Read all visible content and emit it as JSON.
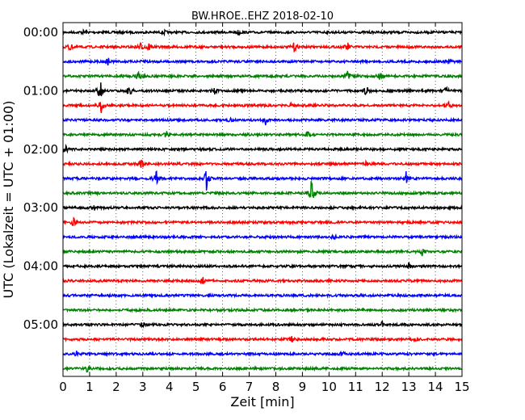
{
  "chart_data": {
    "type": "line",
    "title": "BW.HROE..EHZ 2018-02-10",
    "xlabel": "Zeit  [min]",
    "ylabel": "UTC (Lokalzeit = UTC + 01:00)",
    "xlim": [
      0,
      15
    ],
    "x_ticks": [
      "0",
      "1",
      "2",
      "3",
      "4",
      "5",
      "6",
      "7",
      "8",
      "9",
      "10",
      "11",
      "12",
      "13",
      "14",
      "15"
    ],
    "y_tick_labels": [
      "00:00",
      "01:00",
      "02:00",
      "03:00",
      "04:00",
      "05:00"
    ],
    "row_interval_minutes": 15,
    "row_start_times": [
      "00:00",
      "00:15",
      "00:30",
      "00:45",
      "01:00",
      "01:15",
      "01:30",
      "01:45",
      "02:00",
      "02:15",
      "02:30",
      "02:45",
      "03:00",
      "03:15",
      "03:30",
      "03:45",
      "04:00",
      "04:15",
      "04:30",
      "04:45",
      "05:00",
      "05:15",
      "05:30",
      "05:45"
    ],
    "colors": [
      "#000000",
      "#ff0000",
      "#0000ff",
      "#008000"
    ],
    "grid": "vertical dotted",
    "events": [
      {
        "row": 0,
        "minute": 0.8,
        "amp": 0.2
      },
      {
        "row": 0,
        "minute": 3.8,
        "amp": 0.15
      },
      {
        "row": 0,
        "minute": 6.6,
        "amp": 0.2
      },
      {
        "row": 1,
        "minute": 0.25,
        "amp": 0.4
      },
      {
        "row": 1,
        "minute": 2.9,
        "amp": 0.35
      },
      {
        "row": 1,
        "minute": 3.2,
        "amp": 0.5
      },
      {
        "row": 1,
        "minute": 8.7,
        "amp": 0.4
      },
      {
        "row": 1,
        "minute": 10.7,
        "amp": 0.35
      },
      {
        "row": 2,
        "minute": 1.7,
        "amp": 0.3
      },
      {
        "row": 2,
        "minute": 3.1,
        "amp": 0.2
      },
      {
        "row": 2,
        "minute": 14.5,
        "amp": 0.25
      },
      {
        "row": 3,
        "minute": 2.2,
        "amp": 0.2
      },
      {
        "row": 3,
        "minute": 2.85,
        "amp": 0.55
      },
      {
        "row": 3,
        "minute": 10.7,
        "amp": 0.4
      },
      {
        "row": 3,
        "minute": 11.9,
        "amp": 0.3
      },
      {
        "row": 4,
        "minute": 1.4,
        "amp": 0.9
      },
      {
        "row": 4,
        "minute": 2.5,
        "amp": 0.5
      },
      {
        "row": 4,
        "minute": 5.7,
        "amp": 0.3
      },
      {
        "row": 4,
        "minute": 11.4,
        "amp": 0.4
      },
      {
        "row": 4,
        "minute": 14.4,
        "amp": 0.3
      },
      {
        "row": 5,
        "minute": 1.45,
        "amp": 0.7
      },
      {
        "row": 5,
        "minute": 8.6,
        "amp": 0.2
      },
      {
        "row": 5,
        "minute": 14.5,
        "amp": 0.25
      },
      {
        "row": 6,
        "minute": 6.3,
        "amp": 0.2
      },
      {
        "row": 6,
        "minute": 7.6,
        "amp": 0.45
      },
      {
        "row": 7,
        "minute": 3.85,
        "amp": 0.45
      },
      {
        "row": 7,
        "minute": 9.2,
        "amp": 0.2
      },
      {
        "row": 8,
        "minute": 0.1,
        "amp": 0.3
      },
      {
        "row": 9,
        "minute": 2.95,
        "amp": 0.5
      },
      {
        "row": 9,
        "minute": 11.4,
        "amp": 0.25
      },
      {
        "row": 10,
        "minute": 3.5,
        "amp": 0.6
      },
      {
        "row": 10,
        "minute": 5.4,
        "amp": 1.1
      },
      {
        "row": 10,
        "minute": 12.9,
        "amp": 0.5
      },
      {
        "row": 11,
        "minute": 9.35,
        "amp": 1.3
      },
      {
        "row": 12,
        "minute": 1.2,
        "amp": 0.2
      },
      {
        "row": 13,
        "minute": 0.4,
        "amp": 0.3
      },
      {
        "row": 14,
        "minute": 10.2,
        "amp": 0.2
      },
      {
        "row": 15,
        "minute": 13.5,
        "amp": 0.3
      },
      {
        "row": 16,
        "minute": 13.0,
        "amp": 0.3
      },
      {
        "row": 17,
        "minute": 5.25,
        "amp": 0.35
      },
      {
        "row": 20,
        "minute": 3.0,
        "amp": 0.2
      },
      {
        "row": 20,
        "minute": 12.0,
        "amp": 0.2
      },
      {
        "row": 21,
        "minute": 8.6,
        "amp": 0.2
      },
      {
        "row": 21,
        "minute": 13.2,
        "amp": 0.2
      },
      {
        "row": 22,
        "minute": 0.5,
        "amp": 0.2
      },
      {
        "row": 22,
        "minute": 10.5,
        "amp": 0.25
      },
      {
        "row": 23,
        "minute": 0.9,
        "amp": 0.25
      }
    ]
  }
}
